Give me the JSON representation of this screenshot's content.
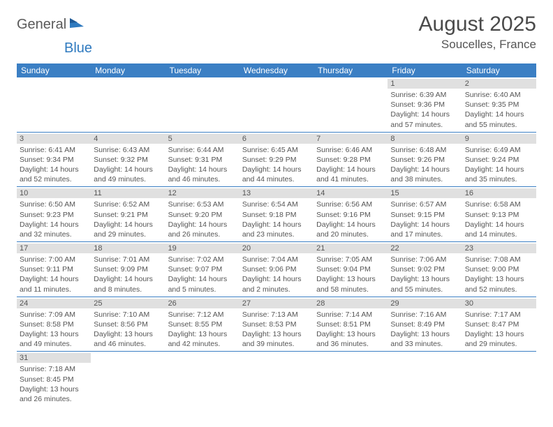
{
  "logo": {
    "text1": "General",
    "text2": "Blue"
  },
  "title": "August 2025",
  "location": "Soucelles, France",
  "colors": {
    "header_bg": "#3b7fc4",
    "header_text": "#ffffff",
    "daynum_bg": "#e0e0e0",
    "text": "#555555",
    "logo_blue": "#2f7abf",
    "logo_gray": "#5a5a5a"
  },
  "day_headers": [
    "Sunday",
    "Monday",
    "Tuesday",
    "Wednesday",
    "Thursday",
    "Friday",
    "Saturday"
  ],
  "weeks": [
    [
      null,
      null,
      null,
      null,
      null,
      {
        "n": "1",
        "sr": "Sunrise: 6:39 AM",
        "ss": "Sunset: 9:36 PM",
        "d1": "Daylight: 14 hours",
        "d2": "and 57 minutes."
      },
      {
        "n": "2",
        "sr": "Sunrise: 6:40 AM",
        "ss": "Sunset: 9:35 PM",
        "d1": "Daylight: 14 hours",
        "d2": "and 55 minutes."
      }
    ],
    [
      {
        "n": "3",
        "sr": "Sunrise: 6:41 AM",
        "ss": "Sunset: 9:34 PM",
        "d1": "Daylight: 14 hours",
        "d2": "and 52 minutes."
      },
      {
        "n": "4",
        "sr": "Sunrise: 6:43 AM",
        "ss": "Sunset: 9:32 PM",
        "d1": "Daylight: 14 hours",
        "d2": "and 49 minutes."
      },
      {
        "n": "5",
        "sr": "Sunrise: 6:44 AM",
        "ss": "Sunset: 9:31 PM",
        "d1": "Daylight: 14 hours",
        "d2": "and 46 minutes."
      },
      {
        "n": "6",
        "sr": "Sunrise: 6:45 AM",
        "ss": "Sunset: 9:29 PM",
        "d1": "Daylight: 14 hours",
        "d2": "and 44 minutes."
      },
      {
        "n": "7",
        "sr": "Sunrise: 6:46 AM",
        "ss": "Sunset: 9:28 PM",
        "d1": "Daylight: 14 hours",
        "d2": "and 41 minutes."
      },
      {
        "n": "8",
        "sr": "Sunrise: 6:48 AM",
        "ss": "Sunset: 9:26 PM",
        "d1": "Daylight: 14 hours",
        "d2": "and 38 minutes."
      },
      {
        "n": "9",
        "sr": "Sunrise: 6:49 AM",
        "ss": "Sunset: 9:24 PM",
        "d1": "Daylight: 14 hours",
        "d2": "and 35 minutes."
      }
    ],
    [
      {
        "n": "10",
        "sr": "Sunrise: 6:50 AM",
        "ss": "Sunset: 9:23 PM",
        "d1": "Daylight: 14 hours",
        "d2": "and 32 minutes."
      },
      {
        "n": "11",
        "sr": "Sunrise: 6:52 AM",
        "ss": "Sunset: 9:21 PM",
        "d1": "Daylight: 14 hours",
        "d2": "and 29 minutes."
      },
      {
        "n": "12",
        "sr": "Sunrise: 6:53 AM",
        "ss": "Sunset: 9:20 PM",
        "d1": "Daylight: 14 hours",
        "d2": "and 26 minutes."
      },
      {
        "n": "13",
        "sr": "Sunrise: 6:54 AM",
        "ss": "Sunset: 9:18 PM",
        "d1": "Daylight: 14 hours",
        "d2": "and 23 minutes."
      },
      {
        "n": "14",
        "sr": "Sunrise: 6:56 AM",
        "ss": "Sunset: 9:16 PM",
        "d1": "Daylight: 14 hours",
        "d2": "and 20 minutes."
      },
      {
        "n": "15",
        "sr": "Sunrise: 6:57 AM",
        "ss": "Sunset: 9:15 PM",
        "d1": "Daylight: 14 hours",
        "d2": "and 17 minutes."
      },
      {
        "n": "16",
        "sr": "Sunrise: 6:58 AM",
        "ss": "Sunset: 9:13 PM",
        "d1": "Daylight: 14 hours",
        "d2": "and 14 minutes."
      }
    ],
    [
      {
        "n": "17",
        "sr": "Sunrise: 7:00 AM",
        "ss": "Sunset: 9:11 PM",
        "d1": "Daylight: 14 hours",
        "d2": "and 11 minutes."
      },
      {
        "n": "18",
        "sr": "Sunrise: 7:01 AM",
        "ss": "Sunset: 9:09 PM",
        "d1": "Daylight: 14 hours",
        "d2": "and 8 minutes."
      },
      {
        "n": "19",
        "sr": "Sunrise: 7:02 AM",
        "ss": "Sunset: 9:07 PM",
        "d1": "Daylight: 14 hours",
        "d2": "and 5 minutes."
      },
      {
        "n": "20",
        "sr": "Sunrise: 7:04 AM",
        "ss": "Sunset: 9:06 PM",
        "d1": "Daylight: 14 hours",
        "d2": "and 2 minutes."
      },
      {
        "n": "21",
        "sr": "Sunrise: 7:05 AM",
        "ss": "Sunset: 9:04 PM",
        "d1": "Daylight: 13 hours",
        "d2": "and 58 minutes."
      },
      {
        "n": "22",
        "sr": "Sunrise: 7:06 AM",
        "ss": "Sunset: 9:02 PM",
        "d1": "Daylight: 13 hours",
        "d2": "and 55 minutes."
      },
      {
        "n": "23",
        "sr": "Sunrise: 7:08 AM",
        "ss": "Sunset: 9:00 PM",
        "d1": "Daylight: 13 hours",
        "d2": "and 52 minutes."
      }
    ],
    [
      {
        "n": "24",
        "sr": "Sunrise: 7:09 AM",
        "ss": "Sunset: 8:58 PM",
        "d1": "Daylight: 13 hours",
        "d2": "and 49 minutes."
      },
      {
        "n": "25",
        "sr": "Sunrise: 7:10 AM",
        "ss": "Sunset: 8:56 PM",
        "d1": "Daylight: 13 hours",
        "d2": "and 46 minutes."
      },
      {
        "n": "26",
        "sr": "Sunrise: 7:12 AM",
        "ss": "Sunset: 8:55 PM",
        "d1": "Daylight: 13 hours",
        "d2": "and 42 minutes."
      },
      {
        "n": "27",
        "sr": "Sunrise: 7:13 AM",
        "ss": "Sunset: 8:53 PM",
        "d1": "Daylight: 13 hours",
        "d2": "and 39 minutes."
      },
      {
        "n": "28",
        "sr": "Sunrise: 7:14 AM",
        "ss": "Sunset: 8:51 PM",
        "d1": "Daylight: 13 hours",
        "d2": "and 36 minutes."
      },
      {
        "n": "29",
        "sr": "Sunrise: 7:16 AM",
        "ss": "Sunset: 8:49 PM",
        "d1": "Daylight: 13 hours",
        "d2": "and 33 minutes."
      },
      {
        "n": "30",
        "sr": "Sunrise: 7:17 AM",
        "ss": "Sunset: 8:47 PM",
        "d1": "Daylight: 13 hours",
        "d2": "and 29 minutes."
      }
    ],
    [
      {
        "n": "31",
        "sr": "Sunrise: 7:18 AM",
        "ss": "Sunset: 8:45 PM",
        "d1": "Daylight: 13 hours",
        "d2": "and 26 minutes."
      },
      null,
      null,
      null,
      null,
      null,
      null
    ]
  ]
}
